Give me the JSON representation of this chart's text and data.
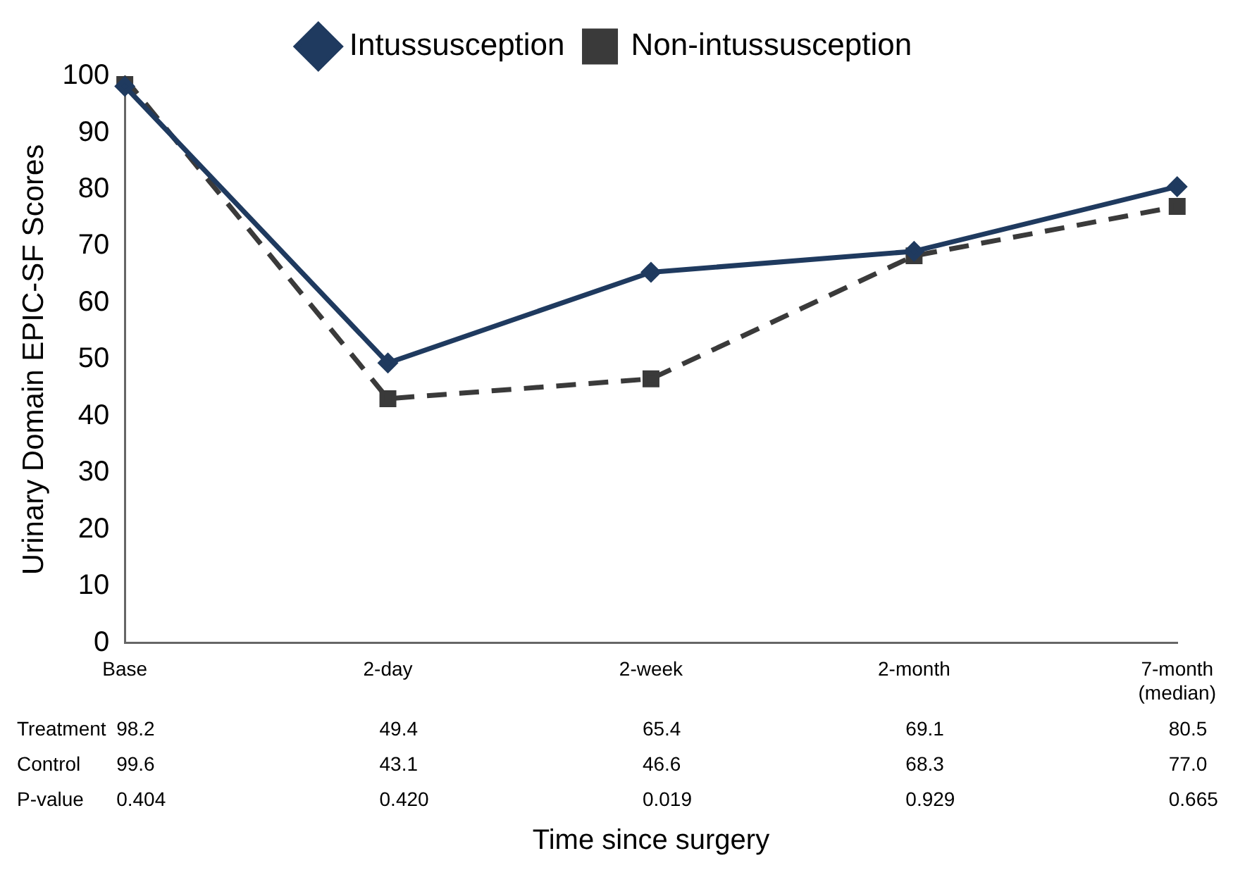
{
  "chart_data": {
    "type": "line",
    "xlabel": "Time since surgery",
    "ylabel": "Urinary Domain EPIC-SF Scores",
    "categories": [
      "Base",
      "2-day",
      "2-week",
      "2-month",
      "7-month (median)"
    ],
    "series": [
      {
        "name": "Intussusception",
        "color": "#1f3a5f",
        "values": [
          98.2,
          49.4,
          65.4,
          69.1,
          80.5
        ],
        "value_labels": [
          "98.2",
          "49.4",
          "65.4",
          "69.1",
          "80.5"
        ],
        "marker": "diamond",
        "line_style": "solid"
      },
      {
        "name": "Non-intussusception",
        "color": "#3a3a3a",
        "values": [
          99.6,
          43.1,
          46.6,
          68.3,
          77.0
        ],
        "value_labels": [
          "99.6",
          "43.1",
          "46.6",
          "68.3",
          "77.0"
        ],
        "marker": "square",
        "line_style": "dashed"
      }
    ],
    "annotations": [
      "Treatment",
      "Control",
      "P-value",
      "0.404",
      "0.420",
      "0.019",
      "0.929",
      "0.665"
    ],
    "ylim": [
      0,
      100
    ],
    "yticks": [
      0,
      10,
      20,
      30,
      40,
      50,
      60,
      70,
      80,
      90,
      100
    ],
    "grid": false,
    "legend": "top"
  }
}
